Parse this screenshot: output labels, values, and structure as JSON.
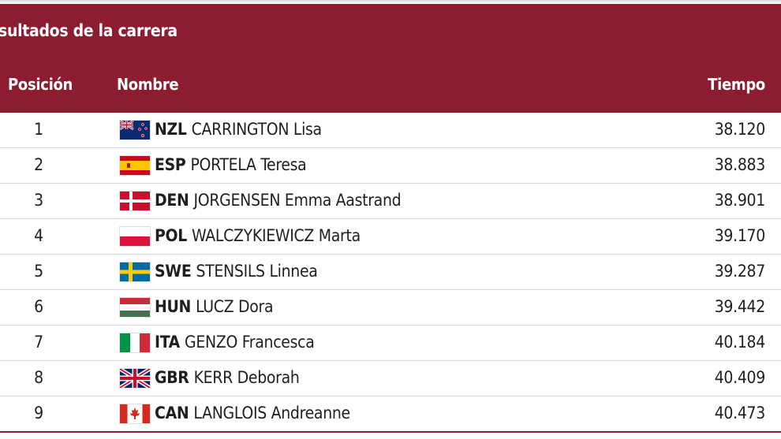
{
  "header": {
    "title": "sultados de la carrera",
    "col_position": "Posición",
    "col_name": "Nombre",
    "col_time": "Tiempo"
  },
  "results": [
    {
      "position": "1",
      "code": "NZL",
      "name": "CARRINGTON Lisa",
      "time": "38.120",
      "flag_icon": "new-zealand-flag-icon"
    },
    {
      "position": "2",
      "code": "ESP",
      "name": "PORTELA Teresa",
      "time": "38.883",
      "flag_icon": "spain-flag-icon"
    },
    {
      "position": "3",
      "code": "DEN",
      "name": "JORGENSEN Emma Aastrand",
      "time": "38.901",
      "flag_icon": "denmark-flag-icon"
    },
    {
      "position": "4",
      "code": "POL",
      "name": "WALCZYKIEWICZ Marta",
      "time": "39.170",
      "flag_icon": "poland-flag-icon"
    },
    {
      "position": "5",
      "code": "SWE",
      "name": "STENSILS Linnea",
      "time": "39.287",
      "flag_icon": "sweden-flag-icon"
    },
    {
      "position": "6",
      "code": "HUN",
      "name": "LUCZ Dora",
      "time": "39.442",
      "flag_icon": "hungary-flag-icon"
    },
    {
      "position": "7",
      "code": "ITA",
      "name": "GENZO Francesca",
      "time": "40.184",
      "flag_icon": "italy-flag-icon"
    },
    {
      "position": "8",
      "code": "GBR",
      "name": "KERR Deborah",
      "time": "40.409",
      "flag_icon": "great-britain-flag-icon"
    },
    {
      "position": "9",
      "code": "CAN",
      "name": "LANGLOIS Andreanne",
      "time": "40.473",
      "flag_icon": "canada-flag-icon"
    }
  ],
  "colors": {
    "header_bg": "#8c1c2f",
    "header_text": "#ffffff",
    "row_text": "#1f1f1f",
    "row_divider": "#d6d6d6"
  }
}
